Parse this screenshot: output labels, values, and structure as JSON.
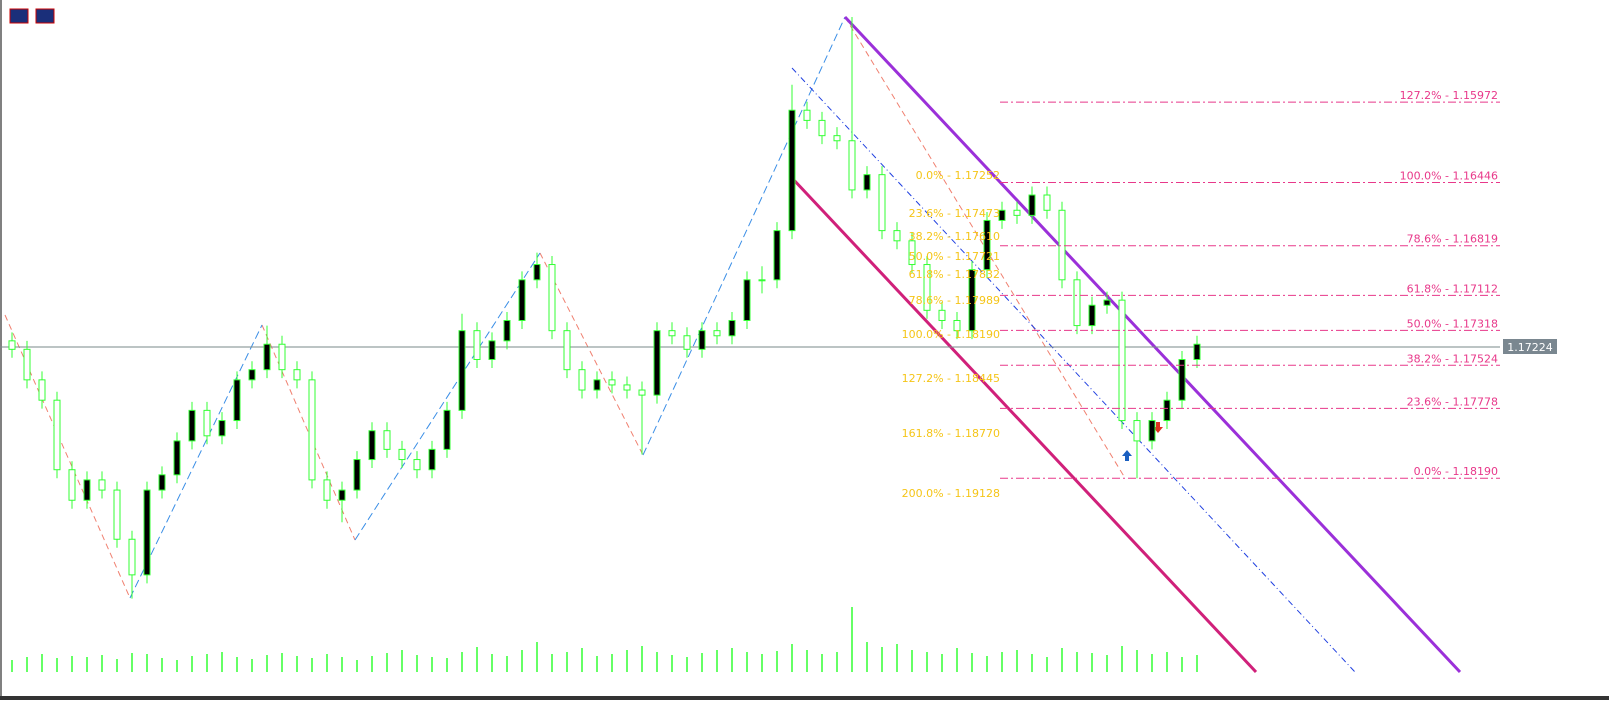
{
  "chart_data": {
    "type": "candlestick",
    "ylim": [
      1.1961,
      1.1537
    ],
    "candle_color": "#33ff33",
    "bear_fill": "#000000",
    "candles": [
      [
        1.1738,
        1.1748,
        1.1733,
        1.1743
      ],
      [
        1.1743,
        1.1766,
        1.1738,
        1.1761
      ],
      [
        1.1761,
        1.1778,
        1.1756,
        1.1773
      ],
      [
        1.1773,
        1.1819,
        1.1768,
        1.1814
      ],
      [
        1.1814,
        1.1837,
        1.1809,
        1.1832
      ],
      [
        1.1832,
        1.1837,
        1.1815,
        1.182
      ],
      [
        1.182,
        1.1831,
        1.1815,
        1.1826
      ],
      [
        1.1826,
        1.186,
        1.1821,
        1.1855
      ],
      [
        1.1855,
        1.189,
        1.185,
        1.1876
      ],
      [
        1.1876,
        1.1881,
        1.1821,
        1.1826
      ],
      [
        1.1826,
        1.1831,
        1.1812,
        1.1817
      ],
      [
        1.1817,
        1.1822,
        1.1792,
        1.1797
      ],
      [
        1.1797,
        1.1802,
        1.1774,
        1.1779
      ],
      [
        1.1779,
        1.1799,
        1.1774,
        1.1794
      ],
      [
        1.1794,
        1.1799,
        1.178,
        1.1785
      ],
      [
        1.1785,
        1.179,
        1.1756,
        1.1761
      ],
      [
        1.1761,
        1.1766,
        1.175,
        1.1755
      ],
      [
        1.1755,
        1.176,
        1.1729,
        1.174
      ],
      [
        1.174,
        1.176,
        1.1735,
        1.1755
      ],
      [
        1.1755,
        1.1766,
        1.175,
        1.1761
      ],
      [
        1.1761,
        1.1825,
        1.1756,
        1.182
      ],
      [
        1.182,
        1.1837,
        1.1815,
        1.1832
      ],
      [
        1.1832,
        1.1845,
        1.1821,
        1.1826
      ],
      [
        1.1826,
        1.1831,
        1.1803,
        1.1808
      ],
      [
        1.1808,
        1.1813,
        1.1786,
        1.1791
      ],
      [
        1.1791,
        1.1807,
        1.1786,
        1.1802
      ],
      [
        1.1802,
        1.1813,
        1.1797,
        1.1808
      ],
      [
        1.1808,
        1.1819,
        1.1803,
        1.1814
      ],
      [
        1.1814,
        1.1819,
        1.1797,
        1.1802
      ],
      [
        1.1802,
        1.1807,
        1.1774,
        1.1779
      ],
      [
        1.1779,
        1.1784,
        1.1722,
        1.1732
      ],
      [
        1.1732,
        1.1754,
        1.1727,
        1.1749
      ],
      [
        1.1749,
        1.1754,
        1.1733,
        1.1738
      ],
      [
        1.1738,
        1.1743,
        1.1721,
        1.1726
      ],
      [
        1.1726,
        1.1731,
        1.1697,
        1.1702
      ],
      [
        1.1702,
        1.1707,
        1.1686,
        1.1693
      ],
      [
        1.1693,
        1.1737,
        1.1688,
        1.1732
      ],
      [
        1.1732,
        1.176,
        1.1727,
        1.1755
      ],
      [
        1.1755,
        1.1772,
        1.175,
        1.1767
      ],
      [
        1.1767,
        1.1772,
        1.1756,
        1.1761
      ],
      [
        1.1761,
        1.1769,
        1.1756,
        1.1764
      ],
      [
        1.1764,
        1.1772,
        1.1759,
        1.1767
      ],
      [
        1.1767,
        1.1805,
        1.1762,
        1.177
      ],
      [
        1.177,
        1.1775,
        1.1727,
        1.1732
      ],
      [
        1.1732,
        1.174,
        1.1727,
        1.1735
      ],
      [
        1.1735,
        1.1748,
        1.173,
        1.1743
      ],
      [
        1.1743,
        1.1748,
        1.1727,
        1.1732
      ],
      [
        1.1732,
        1.174,
        1.1727,
        1.1735
      ],
      [
        1.1735,
        1.174,
        1.1721,
        1.1726
      ],
      [
        1.1726,
        1.1731,
        1.1697,
        1.1702
      ],
      [
        1.1702,
        1.171,
        1.1694,
        1.1702
      ],
      [
        1.1702,
        1.1707,
        1.1668,
        1.1673
      ],
      [
        1.1673,
        1.1678,
        1.1587,
        1.1602
      ],
      [
        1.1602,
        1.1613,
        1.1597,
        1.1608
      ],
      [
        1.1608,
        1.1622,
        1.1603,
        1.1617
      ],
      [
        1.1617,
        1.1625,
        1.1612,
        1.162
      ],
      [
        1.162,
        1.1654,
        1.1547,
        1.1649
      ],
      [
        1.1649,
        1.1654,
        1.1635,
        1.164
      ],
      [
        1.164,
        1.1678,
        1.1635,
        1.1673
      ],
      [
        1.1673,
        1.1684,
        1.1668,
        1.1679
      ],
      [
        1.1679,
        1.1698,
        1.1674,
        1.1693
      ],
      [
        1.1693,
        1.1725,
        1.1688,
        1.172
      ],
      [
        1.172,
        1.1731,
        1.1715,
        1.1726
      ],
      [
        1.1726,
        1.1737,
        1.1721,
        1.1732
      ],
      [
        1.1732,
        1.1737,
        1.1691,
        1.1696
      ],
      [
        1.1696,
        1.1701,
        1.1662,
        1.1667
      ],
      [
        1.1667,
        1.1672,
        1.1656,
        1.1661
      ],
      [
        1.1661,
        1.1669,
        1.1656,
        1.1664
      ],
      [
        1.1664,
        1.1669,
        1.1647,
        1.1652
      ],
      [
        1.1652,
        1.1666,
        1.1647,
        1.1661
      ],
      [
        1.1661,
        1.1707,
        1.1656,
        1.1702
      ],
      [
        1.1702,
        1.1734,
        1.1697,
        1.1729
      ],
      [
        1.1729,
        1.1734,
        1.1712,
        1.1717
      ],
      [
        1.1717,
        1.1722,
        1.1709,
        1.1714
      ],
      [
        1.1714,
        1.179,
        1.1709,
        1.1785
      ],
      [
        1.1785,
        1.1819,
        1.178,
        1.1797
      ],
      [
        1.1797,
        1.1802,
        1.178,
        1.1785
      ],
      [
        1.1785,
        1.179,
        1.1768,
        1.1773
      ],
      [
        1.1773,
        1.1778,
        1.1744,
        1.1749
      ],
      [
        1.1749,
        1.1754,
        1.1735,
        1.174
      ]
    ],
    "volume_ylim": [
      0,
      70
    ],
    "volumes": [
      12,
      15,
      18,
      14,
      16,
      15,
      17,
      13,
      19,
      18,
      14,
      12,
      16,
      18,
      20,
      15,
      13,
      17,
      19,
      16,
      14,
      18,
      15,
      12,
      16,
      19,
      22,
      17,
      15,
      14,
      20,
      25,
      18,
      16,
      22,
      30,
      18,
      20,
      24,
      16,
      18,
      22,
      26,
      20,
      17,
      15,
      19,
      22,
      24,
      20,
      18,
      21,
      28,
      22,
      18,
      20,
      65,
      30,
      25,
      28,
      22,
      20,
      18,
      24,
      19,
      16,
      20,
      22,
      18,
      15,
      24,
      20,
      19,
      17,
      26,
      22,
      18,
      20,
      15,
      17
    ],
    "fib_color": "#e8388a",
    "fib_levels": [
      {
        "label": "127.2% - 1.15972",
        "value": 1.15972
      },
      {
        "label": "100.0% - 1.16446",
        "value": 1.16446
      },
      {
        "label": "78.6% - 1.16819",
        "value": 1.16819
      },
      {
        "label": "61.8% - 1.17112",
        "value": 1.17112
      },
      {
        "label": "50.0% - 1.17318",
        "value": 1.17318
      },
      {
        "label": "38.2% - 1.17524",
        "value": 1.17524
      },
      {
        "label": "23.6% - 1.17778",
        "value": 1.17778
      },
      {
        "label": "0.0% - 1.18190",
        "value": 1.1819
      }
    ],
    "projection_color": "#f5c518",
    "projection_labels": [
      "0.0% - 1.17252",
      "23.6% - 1.17473",
      "38.2% - 1.17610",
      "50.0% - 1.17721",
      "61.8% - 1.17832",
      "78.6% - 1.17989",
      "100.0% - 1.18190",
      "127.2% - 1.18445",
      "161.8% - 1.18770",
      "200.0% - 1.19128"
    ],
    "current_price": "1.17224"
  }
}
